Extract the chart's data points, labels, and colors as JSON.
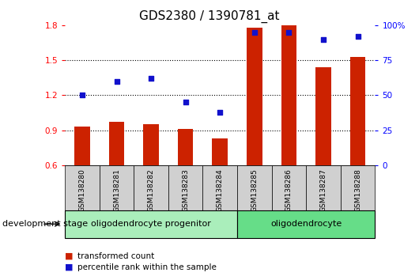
{
  "title": "GDS2380 / 1390781_at",
  "samples": [
    "GSM138280",
    "GSM138281",
    "GSM138282",
    "GSM138283",
    "GSM138284",
    "GSM138285",
    "GSM138286",
    "GSM138287",
    "GSM138288"
  ],
  "transformed_count": [
    0.93,
    0.97,
    0.95,
    0.91,
    0.83,
    1.78,
    1.8,
    1.44,
    1.53
  ],
  "percentile_rank": [
    50,
    60,
    62,
    45,
    38,
    95,
    95,
    90,
    92
  ],
  "ylim_left": [
    0.6,
    1.8
  ],
  "ylim_right": [
    0,
    100
  ],
  "yticks_left": [
    0.6,
    0.9,
    1.2,
    1.5,
    1.8
  ],
  "ytick_labels_left": [
    "0.6",
    "0.9",
    "1.2",
    "1.5",
    "1.8"
  ],
  "yticks_right": [
    0,
    25,
    50,
    75,
    100
  ],
  "ytick_labels_right": [
    "0",
    "25",
    "50",
    "75",
    "100%"
  ],
  "hlines": [
    0.9,
    1.2,
    1.5
  ],
  "bar_color": "#cc2200",
  "dot_color": "#1111cc",
  "bar_bottom": 0.6,
  "groups": [
    {
      "label": "oligodendrocyte progenitor",
      "start": 0,
      "end": 4,
      "color": "#aaeebb"
    },
    {
      "label": "oligodendrocyte",
      "start": 5,
      "end": 8,
      "color": "#66dd88"
    }
  ],
  "group_box_color": "#d0d0d0",
  "legend_bar_label": "transformed count",
  "legend_dot_label": "percentile rank within the sample",
  "dev_stage_label": "development stage",
  "title_fontsize": 11,
  "tick_fontsize": 7.5,
  "sample_fontsize": 6.5,
  "group_fontsize": 8,
  "legend_fontsize": 7.5,
  "dev_fontsize": 8
}
